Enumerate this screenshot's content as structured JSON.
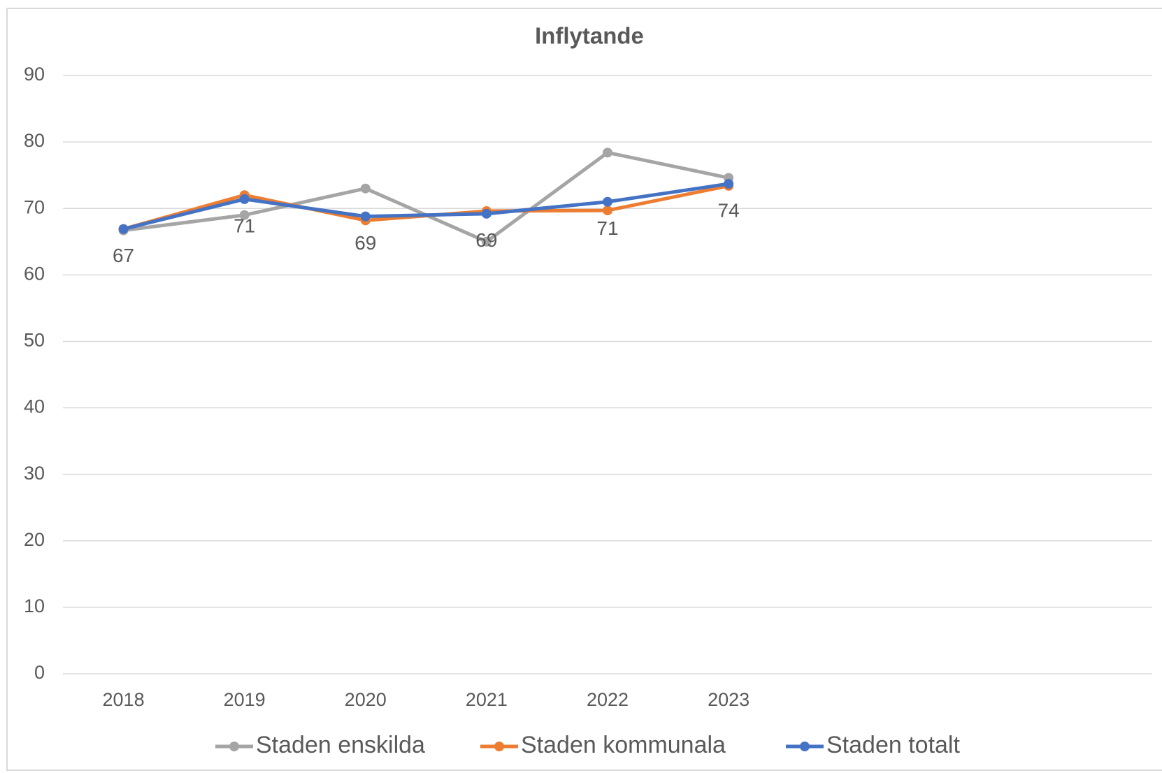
{
  "chart_data": {
    "type": "line",
    "title": "Inflytande",
    "categories": [
      "2018",
      "2019",
      "2020",
      "2021",
      "2022",
      "2023",
      null,
      null,
      null
    ],
    "series": [
      {
        "name": "Staden enskilda",
        "color": "#a5a5a5",
        "values": [
          66.7,
          69,
          73,
          65,
          78.4,
          74.6,
          null,
          null,
          null
        ]
      },
      {
        "name": "Staden kommunala",
        "color": "#ed7d31",
        "values": [
          66.9,
          72,
          68.2,
          69.6,
          69.7,
          73.4,
          null,
          null,
          null
        ]
      },
      {
        "name": "Staden totalt",
        "color": "#4472c4",
        "values": [
          66.9,
          71.4,
          68.8,
          69.2,
          71,
          73.7,
          null,
          null,
          null
        ],
        "value_labels": [
          "67",
          "71",
          "69",
          "69",
          "71",
          "74",
          null,
          null,
          null
        ]
      }
    ],
    "ylim": [
      0,
      90
    ],
    "yticks": [
      0,
      10,
      20,
      30,
      40,
      50,
      60,
      70,
      80,
      90
    ],
    "grid": true,
    "legend": "bottom"
  }
}
